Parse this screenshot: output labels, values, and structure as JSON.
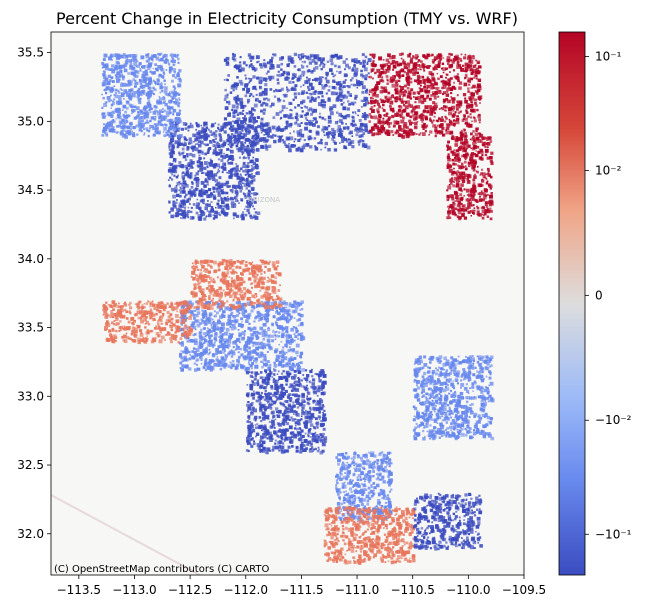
{
  "title": "Percent Change in Electricity Consumption (TMY vs. WRF)",
  "attribution": "(C) OpenStreetMap contributors (C) CARTO",
  "basemap_label": "ARIZONA",
  "map": {
    "x_ticks": [
      {
        "value": -113.5,
        "label": "−113.5"
      },
      {
        "value": -113.0,
        "label": "−113.0"
      },
      {
        "value": -112.5,
        "label": "−112.5"
      },
      {
        "value": -112.0,
        "label": "−112.0"
      },
      {
        "value": -111.5,
        "label": "−111.5"
      },
      {
        "value": -111.0,
        "label": "−111.0"
      },
      {
        "value": -110.5,
        "label": "−110.5"
      },
      {
        "value": -110.0,
        "label": "−110.0"
      },
      {
        "value": -109.5,
        "label": "−109.5"
      }
    ],
    "y_ticks": [
      {
        "value": 35.5,
        "label": "35.5"
      },
      {
        "value": 35.0,
        "label": "35.0"
      },
      {
        "value": 34.5,
        "label": "34.5"
      },
      {
        "value": 34.0,
        "label": "34.0"
      },
      {
        "value": 33.5,
        "label": "33.5"
      },
      {
        "value": 33.0,
        "label": "33.0"
      },
      {
        "value": 32.5,
        "label": "32.5"
      },
      {
        "value": 32.0,
        "label": "32.0"
      }
    ],
    "xlim": [
      -113.75,
      -109.5
    ],
    "ylim": [
      31.7,
      35.65
    ],
    "colormap": "coolwarm",
    "scale": "symlog",
    "colorbar_ticks": [
      {
        "value": 0.1,
        "label": "10⁻¹"
      },
      {
        "value": 0.01,
        "label": "10⁻²"
      },
      {
        "value": 0,
        "label": "0"
      },
      {
        "value": -0.01,
        "label": "−10⁻²"
      },
      {
        "value": -0.1,
        "label": "−10⁻¹"
      }
    ],
    "colors": {
      "basemap": "#f7f7f5",
      "strong_positive": "#b40426",
      "positive": "#e8765c",
      "neutral": "#dcdcdc",
      "negative": "#6788ee",
      "strong_negative": "#3b4cc0"
    }
  },
  "chart_data": {
    "type": "heatmap",
    "title": "Percent Change in Electricity Consumption (TMY vs. WRF)",
    "xlim": [
      -113.75,
      -109.5
    ],
    "ylim": [
      31.7,
      35.65
    ],
    "color_scale": "symlog",
    "colorbar_range": [
      -0.2,
      0.2
    ],
    "regions": [
      {
        "lon": [
          -112.2,
          -110.9
        ],
        "lat": [
          34.8,
          35.5
        ],
        "value": -0.1
      },
      {
        "lon": [
          -112.7,
          -111.9
        ],
        "lat": [
          34.3,
          35.0
        ],
        "value": -0.1
      },
      {
        "lon": [
          -113.3,
          -112.6
        ],
        "lat": [
          34.9,
          35.5
        ],
        "value": -0.05
      },
      {
        "lon": [
          -112.6,
          -111.5
        ],
        "lat": [
          33.2,
          33.7
        ],
        "value": -0.01
      },
      {
        "lon": [
          -112.5,
          -111.7
        ],
        "lat": [
          33.65,
          34.0
        ],
        "value": 0.02
      },
      {
        "lon": [
          -113.3,
          -112.5
        ],
        "lat": [
          33.4,
          33.7
        ],
        "value": 0.02
      },
      {
        "lon": [
          -112.0,
          -111.3
        ],
        "lat": [
          32.6,
          33.2
        ],
        "value": -0.1
      },
      {
        "lon": [
          -111.2,
          -110.7
        ],
        "lat": [
          32.1,
          32.6
        ],
        "value": -0.01
      },
      {
        "lon": [
          -111.3,
          -110.5
        ],
        "lat": [
          31.8,
          32.2
        ],
        "value": 0.05
      },
      {
        "lon": [
          -110.5,
          -109.9
        ],
        "lat": [
          31.9,
          32.3
        ],
        "value": -0.1
      },
      {
        "lon": [
          -110.9,
          -109.9
        ],
        "lat": [
          34.9,
          35.5
        ],
        "value": 0.1
      },
      {
        "lon": [
          -110.2,
          -109.8
        ],
        "lat": [
          34.3,
          34.9
        ],
        "value": 0.1
      },
      {
        "lon": [
          -110.5,
          -109.8
        ],
        "lat": [
          32.7,
          33.3
        ],
        "value": -0.05
      }
    ]
  }
}
